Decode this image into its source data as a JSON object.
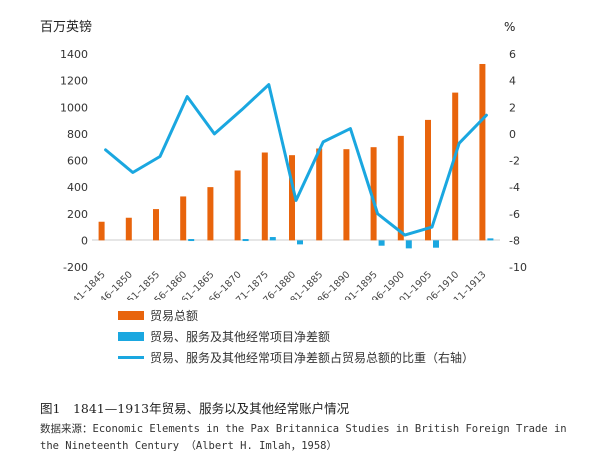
{
  "chart_data": {
    "type": "bar+line",
    "left_axis_unit": "百万英镑",
    "right_axis_unit": "%",
    "categories": [
      "1841–1845",
      "1846–1850",
      "1851–1855",
      "1856–1860",
      "1861–1865",
      "1866–1870",
      "1871–1875",
      "1876–1880",
      "1881–1885",
      "1886–1890",
      "1891–1895",
      "1896–1900",
      "1901–1905",
      "1906–1910",
      "1911–1913"
    ],
    "left_ylim": [
      -200,
      1400
    ],
    "left_yticks": [
      "-200",
      "0",
      "200",
      "400",
      "600",
      "800",
      "1000",
      "1200",
      "1400"
    ],
    "right_ylim": [
      -10,
      6
    ],
    "right_yticks": [
      "-10",
      "-8",
      "-6",
      "-4",
      "-2",
      "0",
      "2",
      "4",
      "6"
    ],
    "series": [
      {
        "name": "贸易总额",
        "type": "bar",
        "axis": "left",
        "color": "#e8640c",
        "values": [
          140,
          170,
          235,
          330,
          400,
          525,
          660,
          640,
          690,
          685,
          700,
          785,
          905,
          1110,
          1325
        ]
      },
      {
        "name": "贸易、服务及其他经常项目净差额",
        "type": "bar",
        "axis": "left",
        "color": "#1aa7e0",
        "values": [
          0,
          0,
          0,
          10,
          0,
          10,
          25,
          -30,
          0,
          0,
          -40,
          -60,
          -55,
          0,
          15
        ]
      },
      {
        "name": "贸易、服务及其他经常项目净差额占贸易总额的比重（右轴）",
        "type": "line",
        "axis": "right",
        "color": "#1aa7e0",
        "values": [
          -1.2,
          -2.9,
          -1.7,
          2.8,
          0.0,
          1.8,
          3.7,
          -5.0,
          -0.6,
          0.4,
          -6.0,
          -7.6,
          -7.0,
          -0.7,
          1.4
        ]
      }
    ],
    "grid": false,
    "legend_position": "bottom"
  },
  "caption": "图1　1841—1913年贸易、服务以及其他经常账户情况",
  "source": "数据来源：Economic Elements in the Pax Britannica Studies in British Foreign Trade in the Nineteenth Century （Albert H. Imlah，1958）"
}
